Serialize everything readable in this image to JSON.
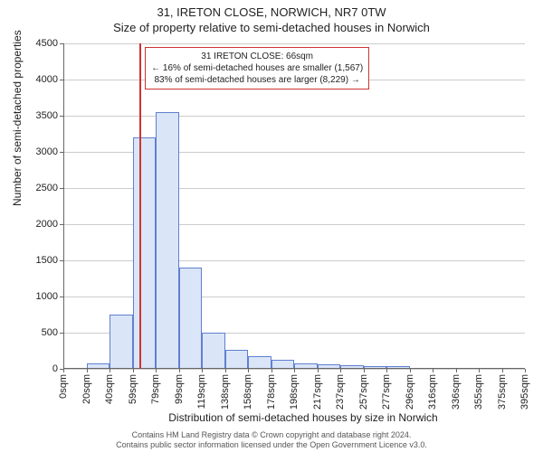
{
  "chart": {
    "type": "histogram",
    "title_main": "31, IRETON CLOSE, NORWICH, NR7 0TW",
    "title_sub": "Size of property relative to semi-detached houses in Norwich",
    "ylabel": "Number of semi-detached properties",
    "xlabel": "Distribution of semi-detached houses by size in Norwich",
    "title_fontsize": 13,
    "label_fontsize": 12,
    "tick_fontsize": 11,
    "background_color": "#ffffff",
    "grid_color": "#cccccc",
    "axis_color": "#666666",
    "bar_fill": "#dbe5f8",
    "bar_border": "#6080d0",
    "ref_line_color": "#cc3333",
    "annotation_border": "#cc3333",
    "ylim": [
      0,
      4500
    ],
    "ytick_step": 500,
    "yticks": [
      0,
      500,
      1000,
      1500,
      2000,
      2500,
      3000,
      3500,
      4000,
      4500
    ],
    "xticks": [
      "0sqm",
      "20sqm",
      "40sqm",
      "59sqm",
      "79sqm",
      "99sqm",
      "119sqm",
      "138sqm",
      "158sqm",
      "178sqm",
      "198sqm",
      "217sqm",
      "237sqm",
      "257sqm",
      "277sqm",
      "296sqm",
      "316sqm",
      "336sqm",
      "355sqm",
      "375sqm",
      "395sqm"
    ],
    "values": [
      0,
      80,
      750,
      3200,
      3550,
      1400,
      500,
      260,
      170,
      120,
      80,
      60,
      50,
      40,
      35,
      0,
      0,
      0,
      0,
      0
    ],
    "ref_value_label_index": 3.3,
    "annotation": {
      "line1": "31 IRETON CLOSE: 66sqm",
      "line2": "← 16% of semi-detached houses are smaller (1,567)",
      "line3": "83% of semi-detached houses are larger (8,229) →"
    },
    "footer_line1": "Contains HM Land Registry data © Crown copyright and database right 2024.",
    "footer_line2": "Contains public sector information licensed under the Open Government Licence v3.0."
  }
}
